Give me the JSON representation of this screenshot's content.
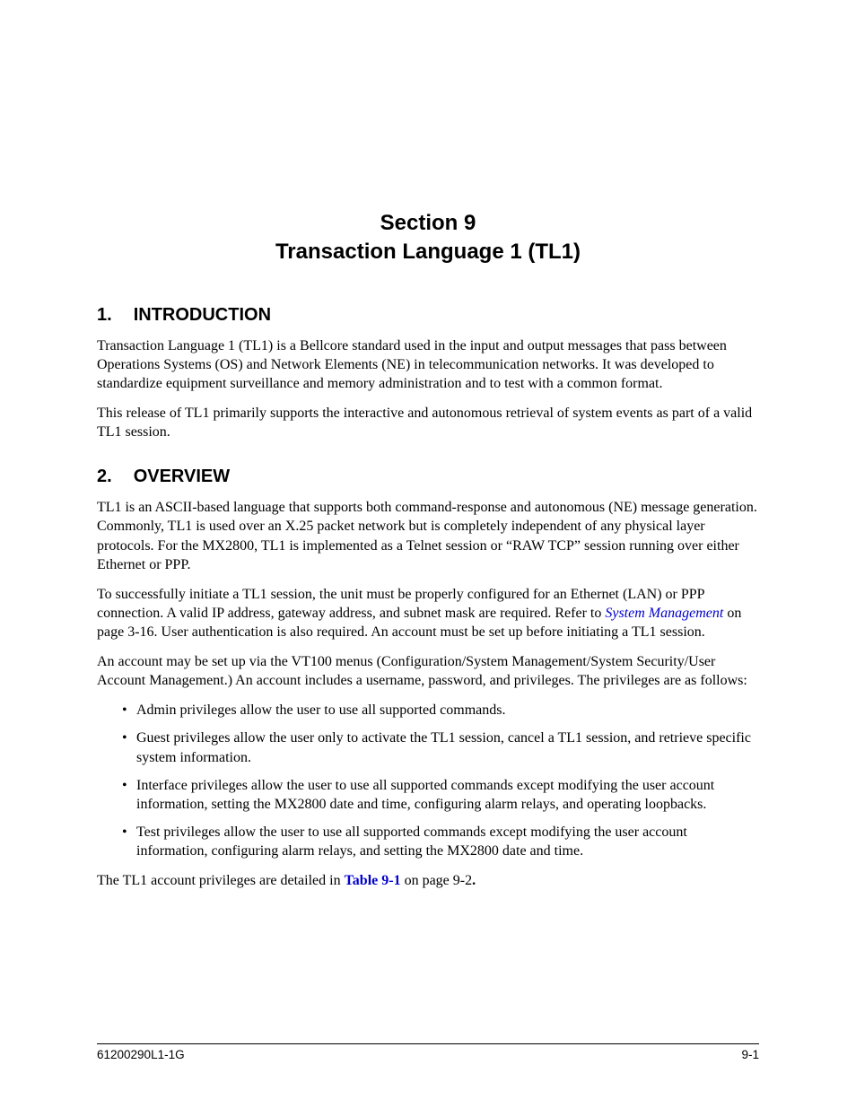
{
  "link_color": "#0000cc",
  "text_color": "#000000",
  "background_color": "#ffffff",
  "section_title_line1": "Section 9",
  "section_title_line2": "Transaction Language 1 (TL1)",
  "intro": {
    "num": "1.",
    "heading": "INTRODUCTION",
    "p1": "Transaction Language 1 (TL1) is a Bellcore standard used in the input and output messages that pass between Operations Systems (OS) and Network Elements (NE) in telecommunication networks. It was developed to standardize equipment surveillance and memory administration and to test with a common format.",
    "p2": "This release of TL1 primarily supports the interactive and autonomous retrieval of system events as part of a valid TL1 session."
  },
  "overview": {
    "num": "2.",
    "heading": "OVERVIEW",
    "p1": "TL1 is an ASCII-based language that supports both command-response and autonomous (NE) message generation. Commonly, TL1 is used over an X.25 packet network but is completely independent of any physical layer protocols. For the MX2800, TL1 is implemented as a Telnet session or “RAW TCP” session running over either Ethernet or PPP.",
    "p2_a": "To successfully initiate a TL1 session, the unit must be properly configured for an Ethernet (LAN) or PPP connection. A valid IP address, gateway address, and subnet mask are required. Refer to ",
    "p2_link": "System Manage­ment",
    "p2_b": " on page 3-16. User authentication is also required. An account must be set up before initiating a TL1 session.",
    "p3": "An account may be set up via the VT100 menus (Configuration/System Management/System Security/User Account Management.) An account includes a username, password, and privileges. The privileges are as follows:",
    "bullets": [
      "Admin privileges allow the user to use all supported commands.",
      "Guest privileges allow the user only to activate the TL1 session, cancel a TL1 session, and retrieve specific system information.",
      "Interface privileges allow the user to use all supported commands except modifying the user account information, setting the MX2800 date and time, configuring alarm relays, and operating loopbacks.",
      "Test privileges allow the user to use all supported commands except modifying the user account information, configuring alarm relays, and setting the MX2800 date and time."
    ],
    "p4_a": "The TL1 account privileges are detailed in ",
    "p4_link": "Table 9-1",
    "p4_b": " on page 9-2",
    "p4_c": "."
  },
  "footer": {
    "left": "61200290L1-1G",
    "right": "9-1"
  }
}
